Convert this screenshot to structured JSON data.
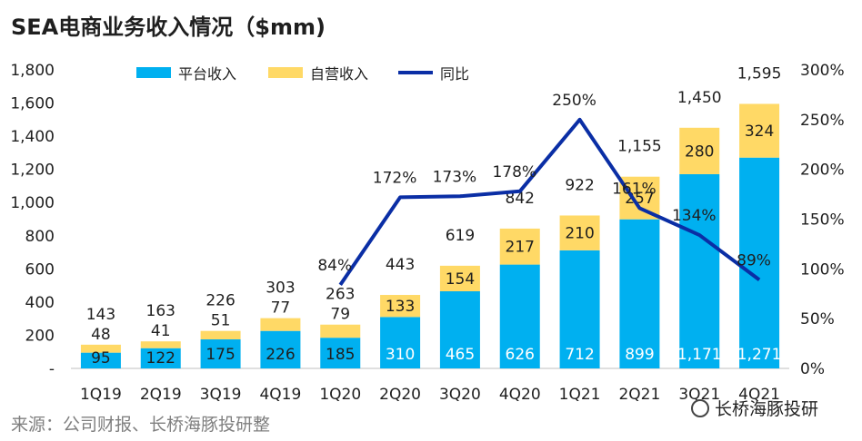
{
  "title": "SEA电商业务收入情况（$mm)",
  "source": "来源：公司财报、长桥海豚投研整",
  "watermark_text": "长桥海豚投研",
  "colors": {
    "platform": "#00b0f0",
    "self": "#ffd966",
    "yoy": "#0a2ea5"
  },
  "legend": {
    "platform": "平台收入",
    "self": "自营收入",
    "yoy": "同比"
  },
  "chart_data": {
    "type": "bar",
    "stacked": true,
    "categories": [
      "1Q19",
      "2Q19",
      "3Q19",
      "4Q19",
      "1Q20",
      "2Q20",
      "3Q20",
      "4Q20",
      "1Q21",
      "2Q21",
      "3Q21",
      "4Q21"
    ],
    "series": [
      {
        "name": "平台收入",
        "values": [
          95,
          122,
          175,
          226,
          185,
          310,
          465,
          626,
          712,
          899,
          1171,
          1271
        ]
      },
      {
        "name": "自营收入",
        "values": [
          48,
          41,
          51,
          77,
          79,
          133,
          154,
          217,
          210,
          257,
          280,
          324
        ]
      }
    ],
    "totals": [
      143,
      163,
      226,
      303,
      263,
      443,
      619,
      842,
      922,
      1155,
      1450,
      1595
    ],
    "totals_labels": [
      "143",
      "163",
      "226",
      "303",
      "263",
      "443",
      "619",
      "842",
      "922",
      "1,155",
      "1,450",
      "1,595"
    ],
    "platform_labels": [
      "95",
      "122",
      "175",
      "226",
      "185",
      "310",
      "465",
      "626",
      "712",
      "899",
      "1,171",
      "1,271"
    ],
    "self_labels": [
      "48",
      "41",
      "51",
      "77",
      "79",
      "133",
      "154",
      "217",
      "210",
      "257",
      "280",
      "324"
    ],
    "line": {
      "name": "同比",
      "axis": "right",
      "values": [
        null,
        null,
        null,
        null,
        84,
        172,
        173,
        178,
        250,
        161,
        134,
        89
      ],
      "labels": [
        "",
        "",
        "",
        "",
        "84%",
        "172%",
        "173%",
        "178%",
        "250%",
        "161%",
        "134%",
        "89%"
      ]
    },
    "left_axis": {
      "range": [
        0,
        1800
      ],
      "ticks": [
        "-",
        "200",
        "400",
        "600",
        "800",
        "1,000",
        "1,200",
        "1,400",
        "1,600",
        "1,800"
      ]
    },
    "right_axis": {
      "range": [
        0,
        300
      ],
      "ticks": [
        "0%",
        "50%",
        "100%",
        "150%",
        "200%",
        "250%",
        "300%"
      ]
    },
    "legend_position": "top",
    "grid": false
  }
}
